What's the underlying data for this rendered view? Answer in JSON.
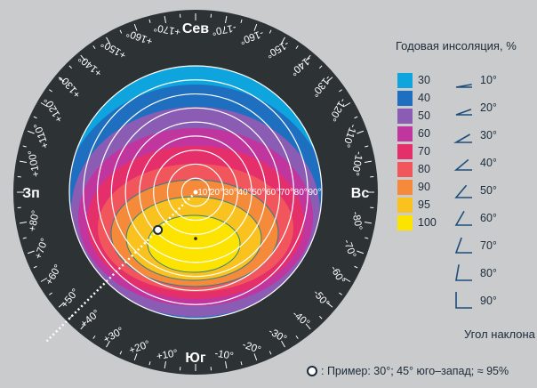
{
  "chart_data": {
    "type": "heatmap",
    "title": "",
    "legend": {
      "title": "Годовая инсоляция, %",
      "placement": "right",
      "entries": [
        {
          "value": "30",
          "color": "#0ea5df"
        },
        {
          "value": "40",
          "color": "#1e6fc0"
        },
        {
          "value": "50",
          "color": "#8a5cb3"
        },
        {
          "value": "60",
          "color": "#c0369e"
        },
        {
          "value": "70",
          "color": "#e52f6a"
        },
        {
          "value": "80",
          "color": "#f1565c"
        },
        {
          "value": "90",
          "color": "#f58a3a"
        },
        {
          "value": "95",
          "color": "#f9c21f"
        },
        {
          "value": "100",
          "color": "#fde300"
        }
      ]
    },
    "directions": {
      "north": "Сев",
      "south": "Юг",
      "east": "Вс",
      "west": "Зп"
    },
    "azimuth_ticks_east": [
      "-10°",
      "-20°",
      "-30°",
      "-40°",
      "-50°",
      "-60°",
      "-70°",
      "-80°",
      "-100°",
      "-110°",
      "-120°",
      "-130°",
      "-140°",
      "-150°",
      "-160°",
      "-170°"
    ],
    "azimuth_values_east": [
      -10,
      -20,
      -30,
      -40,
      -50,
      -60,
      -70,
      -80,
      -100,
      -110,
      -120,
      -130,
      -140,
      -150,
      -160,
      -170
    ],
    "azimuth_ticks_west": [
      "+10°",
      "+20°",
      "+30°",
      "+40°",
      "+50°",
      "+60°",
      "+70°",
      "+80°",
      "+100°",
      "+110°",
      "+120°",
      "+130°",
      "+140°",
      "+150°",
      "+160°",
      "+170°"
    ],
    "azimuth_values_west": [
      10,
      20,
      30,
      40,
      50,
      60,
      70,
      80,
      100,
      110,
      120,
      130,
      140,
      150,
      160,
      170
    ],
    "tilt_ring_labels": [
      "10°",
      "20°",
      "30°",
      "40°",
      "50°",
      "60°",
      "70°",
      "80°",
      "90°"
    ],
    "tilt_ring_values": [
      10,
      20,
      30,
      40,
      50,
      60,
      70,
      80,
      90
    ],
    "tilt_legend": {
      "title": "Угол наклона",
      "entries": [
        {
          "label": "10°",
          "angle": 10
        },
        {
          "label": "20°",
          "angle": 20
        },
        {
          "label": "30°",
          "angle": 30
        },
        {
          "label": "40°",
          "angle": 40
        },
        {
          "label": "50°",
          "angle": 50
        },
        {
          "label": "60°",
          "angle": 60
        },
        {
          "label": "70°",
          "angle": 70
        },
        {
          "label": "80°",
          "angle": 80
        },
        {
          "label": "90°",
          "angle": 90
        }
      ]
    },
    "optimum": {
      "tilt": 30,
      "azimuth": 0,
      "value": 100
    },
    "example": {
      "tilt": 30,
      "azimuth": 45,
      "value": 95,
      "label": ": Пример: 30°; 45° юго–запад; ≈ 95%"
    }
  }
}
